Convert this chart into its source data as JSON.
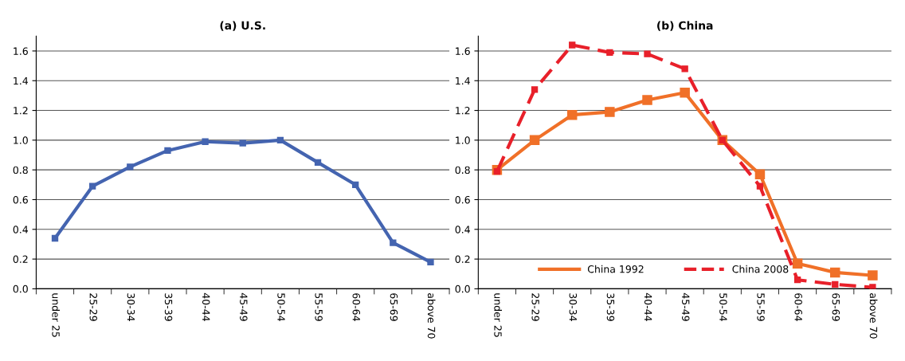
{
  "chart_data": [
    {
      "type": "line",
      "title": "(a) U.S.",
      "categories": [
        "under 25",
        "25-29",
        "30-34",
        "35-39",
        "40-44",
        "45-49",
        "50-54",
        "55-59",
        "60-64",
        "65-69",
        "above 70"
      ],
      "series": [
        {
          "color": "#4464b0",
          "values": [
            0.34,
            0.69,
            0.82,
            0.93,
            0.99,
            0.98,
            1.0,
            0.85,
            0.7,
            0.31,
            0.18
          ]
        }
      ],
      "ylim": [
        0,
        1.7
      ],
      "yticks": [
        {
          "value": 0,
          "label": "0.0"
        },
        {
          "value": 0.2,
          "label": "0.2"
        },
        {
          "value": 0.4,
          "label": "0.4"
        },
        {
          "value": 0.6,
          "label": "0.6"
        },
        {
          "value": 0.8,
          "label": "0.8"
        },
        {
          "value": 1.0,
          "label": "1.0"
        },
        {
          "value": 1.2,
          "label": "1.2"
        },
        {
          "value": 1.4,
          "label": "1.4"
        },
        {
          "value": 1.6,
          "label": "1.6"
        }
      ],
      "grid": "y",
      "marker": "square",
      "line_style": "solid",
      "legend": false
    },
    {
      "type": "line",
      "title": "(b) China",
      "categories": [
        "under 25",
        "25-29",
        "30-34",
        "35-39",
        "40-44",
        "45-49",
        "50-54",
        "55-59",
        "60-64",
        "65-69",
        "above 70"
      ],
      "series": [
        {
          "name": "China 1992",
          "color": "#f07028",
          "line_style": "solid",
          "values": [
            0.8,
            1.0,
            1.17,
            1.19,
            1.27,
            1.32,
            1.0,
            0.77,
            0.17,
            0.11,
            0.09
          ]
        },
        {
          "name": "China 2008",
          "color": "#e8202a",
          "line_style": "dashed",
          "values": [
            0.79,
            1.34,
            1.64,
            1.59,
            1.58,
            1.48,
            1.0,
            0.69,
            0.06,
            0.03,
            0.01
          ]
        }
      ],
      "ylim": [
        0,
        1.7
      ],
      "yticks": [
        {
          "value": 0,
          "label": "0.0"
        },
        {
          "value": 0.2,
          "label": "0.2"
        },
        {
          "value": 0.4,
          "label": "0.4"
        },
        {
          "value": 0.6,
          "label": "0.6"
        },
        {
          "value": 0.8,
          "label": "0.8"
        },
        {
          "value": 1.0,
          "label": "1.0"
        },
        {
          "value": 1.2,
          "label": "1.2"
        },
        {
          "value": 1.4,
          "label": "1.4"
        },
        {
          "value": 1.6,
          "label": "1.6"
        }
      ],
      "grid": "y",
      "marker": "square",
      "legend": "bottom"
    }
  ]
}
